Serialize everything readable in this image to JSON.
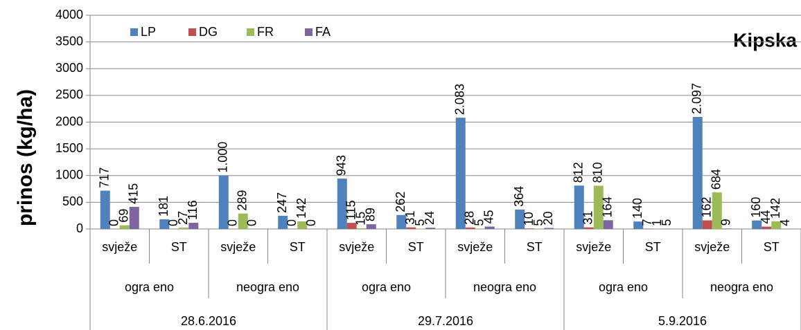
{
  "chart_data": {
    "type": "bar",
    "title": "Kipska",
    "y_label": "prinos (kg/ha)",
    "categories": [
      "svježe",
      "ST",
      "svježe",
      "ST",
      "svježe",
      "ST",
      "svježe",
      "ST",
      "svježe",
      "ST",
      "svježe",
      "ST"
    ],
    "category_level2": [
      "ogra eno",
      "neogra eno",
      "ogra eno",
      "neogra eno",
      "ogra eno",
      "neogra eno"
    ],
    "category_level3": [
      "28.6.2016",
      "29.7.2016",
      "5.9.2016"
    ],
    "series": [
      {
        "name": "LP",
        "color": "#4f81bd",
        "values": [
          717,
          181,
          1000,
          247,
          943,
          262,
          2083,
          364,
          812,
          140,
          2097,
          160
        ],
        "value_labels": [
          "717",
          "181",
          "1.000",
          "247",
          "943",
          "262",
          "2.083",
          "364",
          "812",
          "140",
          "2.097",
          "160"
        ]
      },
      {
        "name": "DG",
        "color": "#c0504d",
        "values": [
          0,
          0,
          0,
          0,
          115,
          31,
          28,
          10,
          31,
          7,
          162,
          44
        ]
      },
      {
        "name": "FR",
        "color": "#9bbb59",
        "values": [
          69,
          27,
          289,
          142,
          15,
          5,
          5,
          5,
          810,
          1,
          684,
          142
        ]
      },
      {
        "name": "FA",
        "color": "#8064a2",
        "values": [
          415,
          116,
          0,
          0,
          89,
          24,
          45,
          20,
          164,
          5,
          9,
          4
        ]
      }
    ],
    "ylim": [
      0,
      4000
    ],
    "yticks": [
      0,
      500,
      1000,
      1500,
      2000,
      2500,
      3000,
      3500,
      4000
    ],
    "grid": true,
    "legend": "top-left"
  }
}
